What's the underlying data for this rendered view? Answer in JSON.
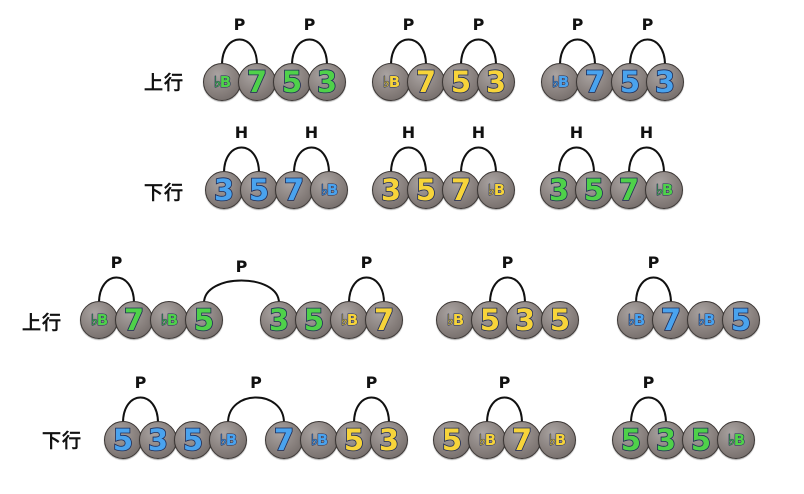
{
  "labels": {
    "ascending": "上行",
    "descending": "下行"
  },
  "techniques": {
    "pull_off": "P",
    "hammer_on": "H"
  },
  "colors": {
    "green": "#4fd14a",
    "yellow": "#f7d43a",
    "blue": "#4aa3ee",
    "note_body": "#877f7c",
    "outline": "#1d2a55"
  },
  "rows": [
    {
      "label": "上行",
      "groups": [
        {
          "color": "green",
          "notes": [
            "♭B",
            "7",
            "5",
            "3"
          ],
          "arcs": [
            {
              "tech": "P",
              "from": 0,
              "to": 1
            },
            {
              "tech": "P",
              "from": 2,
              "to": 3
            }
          ]
        },
        {
          "color": "yellow",
          "notes": [
            "♭B",
            "7",
            "5",
            "3"
          ],
          "arcs": [
            {
              "tech": "P",
              "from": 0,
              "to": 1
            },
            {
              "tech": "P",
              "from": 2,
              "to": 3
            }
          ]
        },
        {
          "color": "blue",
          "notes": [
            "♭B",
            "7",
            "5",
            "3"
          ],
          "arcs": [
            {
              "tech": "P",
              "from": 0,
              "to": 1
            },
            {
              "tech": "P",
              "from": 2,
              "to": 3
            }
          ]
        }
      ]
    },
    {
      "label": "下行",
      "groups": [
        {
          "color": "blue",
          "notes": [
            "3",
            "5",
            "7",
            "♭B"
          ],
          "arcs": [
            {
              "tech": "H",
              "from": 0,
              "to": 1
            },
            {
              "tech": "H",
              "from": 2,
              "to": 3
            }
          ]
        },
        {
          "color": "yellow",
          "notes": [
            "3",
            "5",
            "7",
            "♭B"
          ],
          "arcs": [
            {
              "tech": "H",
              "from": 0,
              "to": 1
            },
            {
              "tech": "H",
              "from": 2,
              "to": 3
            }
          ]
        },
        {
          "color": "green",
          "notes": [
            "3",
            "5",
            "7",
            "♭B"
          ],
          "arcs": [
            {
              "tech": "H",
              "from": 0,
              "to": 1
            },
            {
              "tech": "H",
              "from": 2,
              "to": 3
            }
          ]
        }
      ]
    },
    {
      "label": "上行",
      "groups": [
        {
          "notes": [
            [
              "♭B",
              "green"
            ],
            [
              "7",
              "green"
            ],
            [
              "♭B",
              "green"
            ],
            [
              "5",
              "green"
            ]
          ],
          "arcs": [
            {
              "tech": "P",
              "from": 0,
              "to": 1
            }
          ]
        },
        {
          "notes": [
            [
              "3",
              "green"
            ],
            [
              "5",
              "green"
            ],
            [
              "♭B",
              "yellow"
            ],
            [
              "7",
              "yellow"
            ]
          ],
          "arcs": [
            {
              "tech": "P",
              "from": 2,
              "to": 3
            }
          ]
        },
        {
          "notes": [
            [
              "♭B",
              "yellow"
            ],
            [
              "5",
              "yellow"
            ],
            [
              "3",
              "yellow"
            ],
            [
              "5",
              "yellow"
            ]
          ],
          "arcs": [
            {
              "tech": "P",
              "from": 1,
              "to": 2
            }
          ]
        },
        {
          "notes": [
            [
              "♭B",
              "blue"
            ],
            [
              "7",
              "blue"
            ],
            [
              "♭B",
              "blue"
            ],
            [
              "5",
              "blue"
            ]
          ],
          "arcs": [
            {
              "tech": "P",
              "from": 0,
              "to": 1
            }
          ]
        }
      ],
      "cross_arc": {
        "tech": "P",
        "from_group": 0,
        "from_note": 3,
        "to_group": 1,
        "to_note": 0
      }
    },
    {
      "label": "下行",
      "groups": [
        {
          "notes": [
            [
              "5",
              "blue"
            ],
            [
              "3",
              "blue"
            ],
            [
              "5",
              "blue"
            ],
            [
              "♭B",
              "blue"
            ]
          ],
          "arcs": [
            {
              "tech": "P",
              "from": 0,
              "to": 1
            }
          ]
        },
        {
          "notes": [
            [
              "7",
              "blue"
            ],
            [
              "♭B",
              "blue"
            ],
            [
              "5",
              "yellow"
            ],
            [
              "3",
              "yellow"
            ]
          ],
          "arcs": [
            {
              "tech": "P",
              "from": 2,
              "to": 3
            }
          ]
        },
        {
          "notes": [
            [
              "5",
              "yellow"
            ],
            [
              "♭B",
              "yellow"
            ],
            [
              "7",
              "yellow"
            ],
            [
              "♭B",
              "yellow"
            ]
          ],
          "arcs": [
            {
              "tech": "P",
              "from": 1,
              "to": 2
            }
          ]
        },
        {
          "notes": [
            [
              "5",
              "green"
            ],
            [
              "3",
              "green"
            ],
            [
              "5",
              "green"
            ],
            [
              "♭B",
              "green"
            ]
          ],
          "arcs": [
            {
              "tech": "P",
              "from": 0,
              "to": 1
            }
          ]
        }
      ],
      "cross_arc": {
        "tech": "P",
        "from_group": 0,
        "from_note": 3,
        "to_group": 1,
        "to_note": 0
      }
    }
  ]
}
